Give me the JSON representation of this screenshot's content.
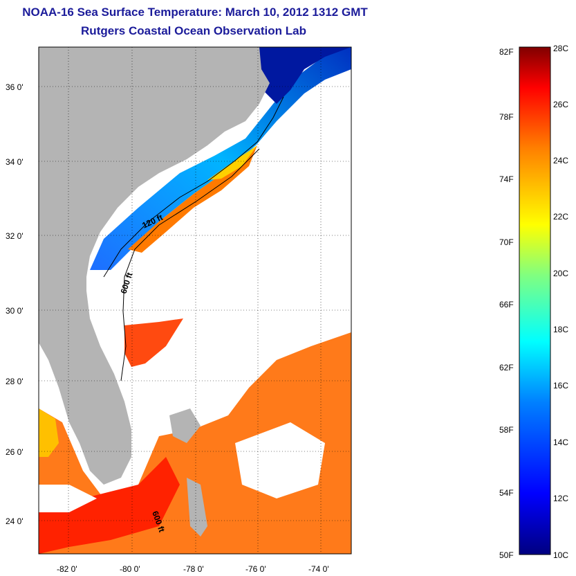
{
  "title": "NOAA-16 Sea Surface Temperature:  March 10, 2012 1312 GMT",
  "subtitle": "Rutgers Coastal Ocean Observation Lab",
  "lat_ticks": [
    "36 0'",
    "34 0'",
    "32 0'",
    "30 0'",
    "28 0'",
    "26 0'",
    "24 0'"
  ],
  "lon_ticks": [
    "-82 0'",
    "-80 0'",
    "-78 0'",
    "-76 0'",
    "-74 0'"
  ],
  "contours": [
    "120 ft",
    "600 ft",
    "600 ft"
  ],
  "colorbar": {
    "f_labels": [
      "82F",
      "78F",
      "74F",
      "70F",
      "66F",
      "62F",
      "58F",
      "54F",
      "50F"
    ],
    "c_labels": [
      "28C",
      "26C",
      "24C",
      "22C",
      "20C",
      "18C",
      "16C",
      "14C",
      "12C",
      "10C"
    ],
    "colors": [
      "#000080",
      "#0000ff",
      "#0080ff",
      "#00ffff",
      "#80ff80",
      "#ffff00",
      "#ff8000",
      "#ff0000",
      "#800000"
    ]
  },
  "colors": {
    "land": "#b4b4b4",
    "title": "#1b1b9a"
  }
}
